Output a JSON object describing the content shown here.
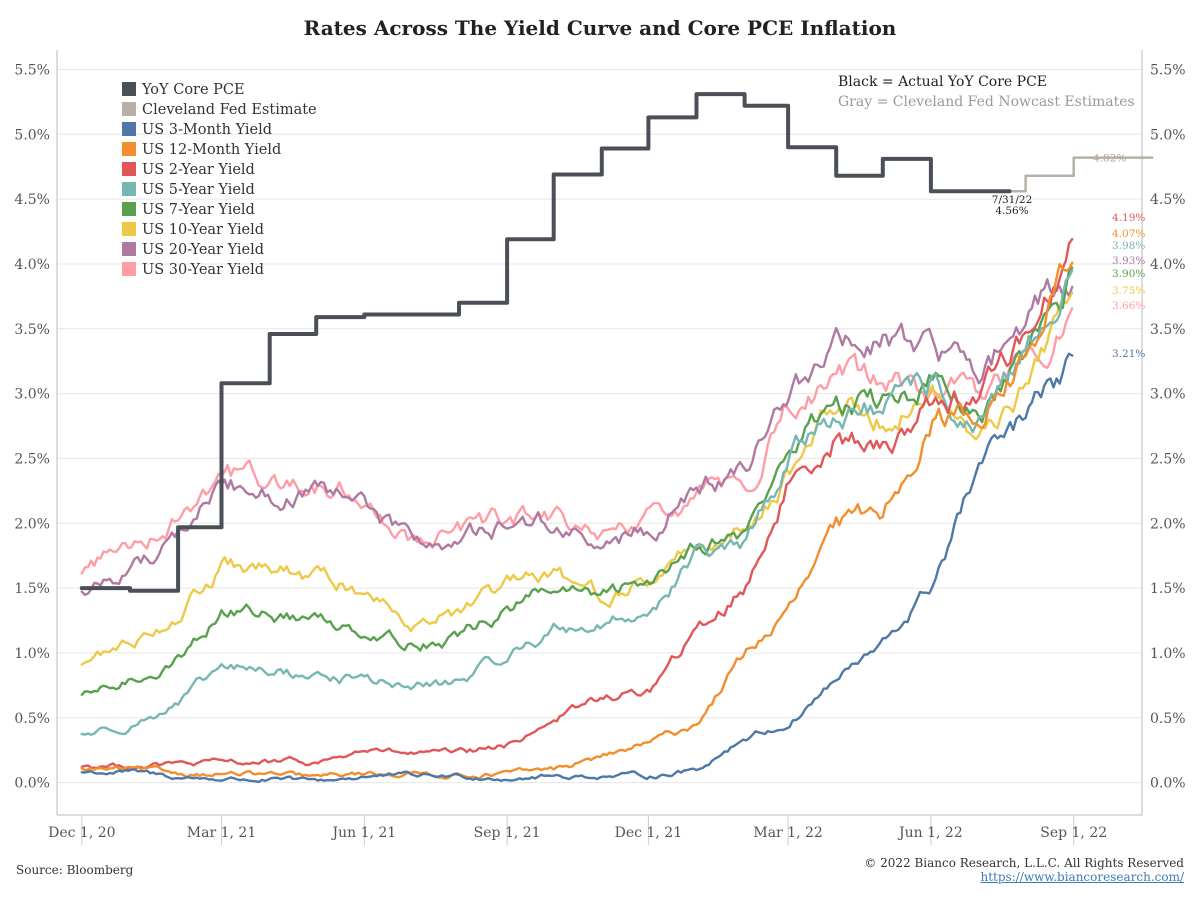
{
  "title": "Rates Across The Yield Curve and Core PCE Inflation",
  "source": "Source: Bloomberg",
  "copyright": "© 2022 Bianco Research, L.L.C. All Rights Reserved",
  "url": "https://www.biancoresearch.com/",
  "notes": {
    "black": "Black = Actual YoY Core PCE",
    "gray": "Gray = Cleveland Fed Nowcast Estimates"
  },
  "chart_data": {
    "type": "line",
    "title": "Rates Across The Yield Curve and Core PCE Inflation",
    "x_range": [
      "2020-11-15",
      "2022-10-15"
    ],
    "x_ticks": [
      {
        "date": "2020-12-01",
        "label": "Dec 1, 20"
      },
      {
        "date": "2021-03-01",
        "label": "Mar 1, 21"
      },
      {
        "date": "2021-06-01",
        "label": "Jun 1, 21"
      },
      {
        "date": "2021-09-01",
        "label": "Sep 1, 21"
      },
      {
        "date": "2021-12-01",
        "label": "Dec 1, 21"
      },
      {
        "date": "2022-03-01",
        "label": "Mar 1, 22"
      },
      {
        "date": "2022-06-01",
        "label": "Jun 1, 22"
      },
      {
        "date": "2022-09-01",
        "label": "Sep 1, 22"
      }
    ],
    "ylim": [
      -0.25,
      5.65
    ],
    "y_ticks": [
      "0.0%",
      "0.5%",
      "1.0%",
      "1.5%",
      "2.0%",
      "2.5%",
      "3.0%",
      "3.5%",
      "4.0%",
      "4.5%",
      "5.0%",
      "5.5%"
    ],
    "y_tick_values": [
      0,
      0.5,
      1,
      1.5,
      2,
      2.5,
      3,
      3.5,
      4,
      4.5,
      5,
      5.5
    ],
    "grid": "horizontal",
    "legend_position": "top-left",
    "annotation": {
      "date": "2022-07-31",
      "lines": [
        "7/31/22",
        "4.56%"
      ]
    },
    "series": [
      {
        "name": "YoY Core PCE",
        "color": "#4a4f58",
        "style": "step",
        "points": [
          [
            "2020-12-01",
            1.5
          ],
          [
            "2021-01-01",
            1.48
          ],
          [
            "2021-02-01",
            1.97
          ],
          [
            "2021-03-01",
            3.08
          ],
          [
            "2021-04-01",
            3.46
          ],
          [
            "2021-05-01",
            3.59
          ],
          [
            "2021-06-01",
            3.61
          ],
          [
            "2021-07-01",
            3.61
          ],
          [
            "2021-08-01",
            3.7
          ],
          [
            "2021-09-01",
            4.19
          ],
          [
            "2021-10-01",
            4.69
          ],
          [
            "2021-11-01",
            4.89
          ],
          [
            "2021-12-01",
            5.13
          ],
          [
            "2022-01-01",
            5.31
          ],
          [
            "2022-02-01",
            5.22
          ],
          [
            "2022-03-01",
            4.9
          ],
          [
            "2022-04-01",
            4.68
          ],
          [
            "2022-05-01",
            4.81
          ],
          [
            "2022-06-01",
            4.56
          ],
          [
            "2022-07-01",
            4.56
          ]
        ]
      },
      {
        "name": "Cleveland Fed Estimate",
        "color": "#b8b0a8",
        "style": "step",
        "end_label": "4.82%",
        "points": [
          [
            "2022-07-01",
            4.56
          ],
          [
            "2022-08-01",
            4.68
          ],
          [
            "2022-09-01",
            4.82
          ],
          [
            "2022-10-01",
            4.82
          ]
        ]
      },
      {
        "name": "US 3-Month Yield",
        "color": "#4e79a7",
        "end_label": "3.21%",
        "points": [
          [
            "2020-12-01",
            0.08
          ],
          [
            "2021-01-01",
            0.08
          ],
          [
            "2021-02-01",
            0.04
          ],
          [
            "2021-03-01",
            0.03
          ],
          [
            "2021-04-01",
            0.02
          ],
          [
            "2021-05-01",
            0.01
          ],
          [
            "2021-06-01",
            0.05
          ],
          [
            "2021-07-01",
            0.05
          ],
          [
            "2021-08-01",
            0.05
          ],
          [
            "2021-09-01",
            0.04
          ],
          [
            "2021-10-01",
            0.05
          ],
          [
            "2021-11-01",
            0.05
          ],
          [
            "2021-12-01",
            0.05
          ],
          [
            "2022-01-01",
            0.1
          ],
          [
            "2022-02-01",
            0.35
          ],
          [
            "2022-03-01",
            0.45
          ],
          [
            "2022-04-01",
            0.8
          ],
          [
            "2022-05-01",
            1.05
          ],
          [
            "2022-06-01",
            1.5
          ],
          [
            "2022-07-01",
            2.4
          ],
          [
            "2022-08-01",
            2.8
          ],
          [
            "2022-09-01",
            3.21
          ]
        ]
      },
      {
        "name": "US 12-Month Yield",
        "color": "#f28e2b",
        "end_label": "4.07%",
        "points": [
          [
            "2020-12-01",
            0.1
          ],
          [
            "2021-01-01",
            0.1
          ],
          [
            "2021-02-01",
            0.07
          ],
          [
            "2021-03-01",
            0.07
          ],
          [
            "2021-04-01",
            0.06
          ],
          [
            "2021-05-01",
            0.04
          ],
          [
            "2021-06-01",
            0.07
          ],
          [
            "2021-07-01",
            0.07
          ],
          [
            "2021-08-01",
            0.06
          ],
          [
            "2021-09-01",
            0.07
          ],
          [
            "2021-10-01",
            0.1
          ],
          [
            "2021-11-01",
            0.2
          ],
          [
            "2021-12-01",
            0.3
          ],
          [
            "2022-01-01",
            0.45
          ],
          [
            "2022-02-01",
            1.0
          ],
          [
            "2022-03-01",
            1.3
          ],
          [
            "2022-04-01",
            1.95
          ],
          [
            "2022-05-01",
            2.1
          ],
          [
            "2022-06-01",
            2.8
          ],
          [
            "2022-07-01",
            2.85
          ],
          [
            "2022-08-01",
            3.25
          ],
          [
            "2022-09-01",
            4.07
          ]
        ]
      },
      {
        "name": "US 2-Year Yield",
        "color": "#e15759",
        "end_label": "4.19%",
        "points": [
          [
            "2020-12-01",
            0.13
          ],
          [
            "2021-01-01",
            0.13
          ],
          [
            "2021-02-01",
            0.14
          ],
          [
            "2021-03-01",
            0.15
          ],
          [
            "2021-04-01",
            0.16
          ],
          [
            "2021-05-01",
            0.15
          ],
          [
            "2021-06-01",
            0.25
          ],
          [
            "2021-07-01",
            0.22
          ],
          [
            "2021-08-01",
            0.22
          ],
          [
            "2021-09-01",
            0.28
          ],
          [
            "2021-10-01",
            0.5
          ],
          [
            "2021-11-01",
            0.65
          ],
          [
            "2021-12-01",
            0.7
          ],
          [
            "2022-01-01",
            1.15
          ],
          [
            "2022-02-01",
            1.5
          ],
          [
            "2022-03-01",
            2.3
          ],
          [
            "2022-04-01",
            2.7
          ],
          [
            "2022-05-01",
            2.55
          ],
          [
            "2022-06-01",
            2.95
          ],
          [
            "2022-07-01",
            3.0
          ],
          [
            "2022-08-01",
            3.45
          ],
          [
            "2022-09-01",
            4.19
          ]
        ]
      },
      {
        "name": "US 5-Year Yield",
        "color": "#76b7b2",
        "end_label": "3.98%",
        "points": [
          [
            "2020-12-01",
            0.37
          ],
          [
            "2021-01-01",
            0.45
          ],
          [
            "2021-02-01",
            0.6
          ],
          [
            "2021-03-01",
            0.88
          ],
          [
            "2021-04-01",
            0.86
          ],
          [
            "2021-05-01",
            0.82
          ],
          [
            "2021-06-01",
            0.8
          ],
          [
            "2021-07-01",
            0.73
          ],
          [
            "2021-08-01",
            0.78
          ],
          [
            "2021-09-01",
            0.98
          ],
          [
            "2021-10-01",
            1.18
          ],
          [
            "2021-11-01",
            1.22
          ],
          [
            "2021-12-01",
            1.32
          ],
          [
            "2022-01-01",
            1.75
          ],
          [
            "2022-02-01",
            1.8
          ],
          [
            "2022-03-01",
            2.5
          ],
          [
            "2022-04-01",
            2.88
          ],
          [
            "2022-05-01",
            2.85
          ],
          [
            "2022-06-01",
            3.05
          ],
          [
            "2022-07-01",
            2.72
          ],
          [
            "2022-08-01",
            3.25
          ],
          [
            "2022-09-01",
            3.98
          ]
        ]
      },
      {
        "name": "US 7-Year Yield",
        "color": "#59a14f",
        "end_label": "3.90%",
        "points": [
          [
            "2020-12-01",
            0.65
          ],
          [
            "2021-01-01",
            0.78
          ],
          [
            "2021-02-01",
            0.95
          ],
          [
            "2021-03-01",
            1.32
          ],
          [
            "2021-04-01",
            1.3
          ],
          [
            "2021-05-01",
            1.25
          ],
          [
            "2021-06-01",
            1.2
          ],
          [
            "2021-07-01",
            1.08
          ],
          [
            "2021-08-01",
            1.12
          ],
          [
            "2021-09-01",
            1.33
          ],
          [
            "2021-10-01",
            1.5
          ],
          [
            "2021-11-01",
            1.42
          ],
          [
            "2021-12-01",
            1.55
          ],
          [
            "2022-01-01",
            1.88
          ],
          [
            "2022-02-01",
            1.9
          ],
          [
            "2022-03-01",
            2.55
          ],
          [
            "2022-04-01",
            2.95
          ],
          [
            "2022-05-01",
            2.9
          ],
          [
            "2022-06-01",
            3.1
          ],
          [
            "2022-07-01",
            2.75
          ],
          [
            "2022-08-01",
            3.25
          ],
          [
            "2022-09-01",
            3.9
          ]
        ]
      },
      {
        "name": "US 10-Year Yield",
        "color": "#edc948",
        "end_label": "3.75%",
        "points": [
          [
            "2020-12-01",
            0.92
          ],
          [
            "2021-01-01",
            1.08
          ],
          [
            "2021-02-01",
            1.3
          ],
          [
            "2021-03-01",
            1.65
          ],
          [
            "2021-04-01",
            1.62
          ],
          [
            "2021-05-01",
            1.58
          ],
          [
            "2021-06-01",
            1.48
          ],
          [
            "2021-07-01",
            1.28
          ],
          [
            "2021-08-01",
            1.3
          ],
          [
            "2021-09-01",
            1.5
          ],
          [
            "2021-10-01",
            1.58
          ],
          [
            "2021-11-01",
            1.45
          ],
          [
            "2021-12-01",
            1.55
          ],
          [
            "2022-01-01",
            1.85
          ],
          [
            "2022-02-01",
            1.95
          ],
          [
            "2022-03-01",
            2.4
          ],
          [
            "2022-04-01",
            2.9
          ],
          [
            "2022-05-01",
            2.85
          ],
          [
            "2022-06-01",
            3.0
          ],
          [
            "2022-07-01",
            2.65
          ],
          [
            "2022-08-01",
            3.05
          ],
          [
            "2022-09-01",
            3.75
          ]
        ]
      },
      {
        "name": "US 20-Year Yield",
        "color": "#af7aa1",
        "end_label": "3.93%",
        "points": [
          [
            "2020-12-01",
            1.45
          ],
          [
            "2021-01-01",
            1.65
          ],
          [
            "2021-02-01",
            1.9
          ],
          [
            "2021-03-01",
            2.3
          ],
          [
            "2021-04-01",
            2.25
          ],
          [
            "2021-05-01",
            2.2
          ],
          [
            "2021-06-01",
            2.12
          ],
          [
            "2021-07-01",
            1.85
          ],
          [
            "2021-08-01",
            1.85
          ],
          [
            "2021-09-01",
            2.0
          ],
          [
            "2021-10-01",
            2.0
          ],
          [
            "2021-11-01",
            1.8
          ],
          [
            "2021-12-01",
            1.95
          ],
          [
            "2022-01-01",
            2.25
          ],
          [
            "2022-02-01",
            2.35
          ],
          [
            "2022-03-01",
            3.05
          ],
          [
            "2022-04-01",
            3.35
          ],
          [
            "2022-05-01",
            3.4
          ],
          [
            "2022-06-01",
            3.3
          ],
          [
            "2022-07-01",
            3.2
          ],
          [
            "2022-08-01",
            3.5
          ],
          [
            "2022-09-01",
            3.93
          ]
        ]
      },
      {
        "name": "US 30-Year Yield",
        "color": "#ff9da7",
        "end_label": "3.66%",
        "points": [
          [
            "2020-12-01",
            1.65
          ],
          [
            "2021-01-01",
            1.85
          ],
          [
            "2021-02-01",
            2.05
          ],
          [
            "2021-03-01",
            2.4
          ],
          [
            "2021-04-01",
            2.32
          ],
          [
            "2021-05-01",
            2.28
          ],
          [
            "2021-06-01",
            2.2
          ],
          [
            "2021-07-01",
            1.9
          ],
          [
            "2021-08-01",
            1.92
          ],
          [
            "2021-09-01",
            2.02
          ],
          [
            "2021-10-01",
            2.05
          ],
          [
            "2021-11-01",
            1.85
          ],
          [
            "2021-12-01",
            2.0
          ],
          [
            "2022-01-01",
            2.2
          ],
          [
            "2022-02-01",
            2.3
          ],
          [
            "2022-03-01",
            2.9
          ],
          [
            "2022-04-01",
            3.1
          ],
          [
            "2022-05-01",
            3.1
          ],
          [
            "2022-06-01",
            3.0
          ],
          [
            "2022-07-01",
            3.0
          ],
          [
            "2022-08-01",
            3.2
          ],
          [
            "2022-09-01",
            3.66
          ]
        ]
      }
    ]
  }
}
